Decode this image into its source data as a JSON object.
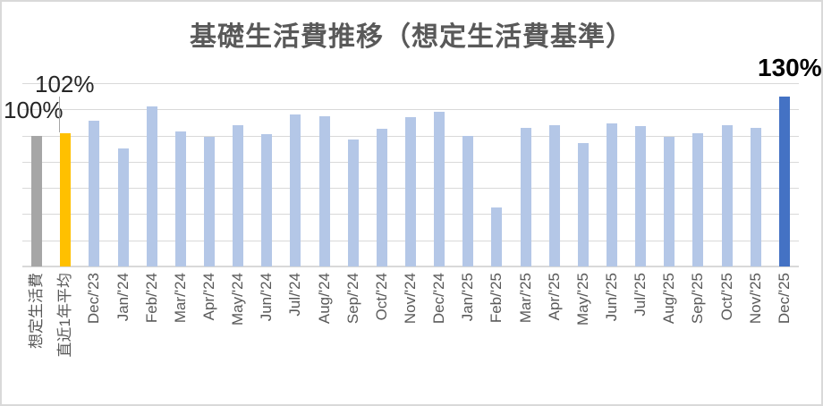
{
  "chart_data": {
    "type": "bar",
    "title": "基礎生活費推移（想定生活費基準）",
    "categories": [
      "想定生活費",
      "直近1年平均",
      "Dec/'23",
      "Jan/'24",
      "Feb/'24",
      "Mar/'24",
      "Apr/'24",
      "May/'24",
      "Jun/'24",
      "Jul/'24",
      "Aug/'24",
      "Sep/'24",
      "Oct/'24",
      "Nov/'24",
      "Dec/'24",
      "Jan/'25",
      "Feb/'25",
      "Mar/'25",
      "Apr/'25",
      "May/'25",
      "Jun/'25",
      "Jul/'25",
      "Aug/'25",
      "Sep/'25",
      "Oct/'25",
      "Nov/'25",
      "Dec/'25"
    ],
    "values": [
      100,
      102,
      111,
      90,
      122,
      103,
      99,
      108,
      101,
      116,
      115,
      97,
      105,
      114,
      118,
      100,
      45,
      106,
      108,
      94,
      109,
      107,
      99,
      102,
      108,
      106,
      130
    ],
    "unit": "%",
    "ylim": [
      0,
      140
    ],
    "gridline_step": 20,
    "grid": true,
    "legend": false,
    "y_tick_labels_visible": false,
    "x_labels_rotation_degrees": 90,
    "data_labels": [
      {
        "category": "想定生活費",
        "text": "100%"
      },
      {
        "category": "直近1年平均",
        "text": "102%",
        "leader_line": true
      },
      {
        "category": "Dec/'25",
        "text": "130%",
        "bold": true
      }
    ],
    "colors": {
      "default_bar": "#b4c7e7",
      "reference_bar": "#a6a6a6",
      "average_bar": "#ffc000",
      "highlight_bar": "#4472c4",
      "gridline": "#d9d9d9",
      "title_text": "#595959",
      "axis_text": "#595959",
      "data_label_text": "#262626",
      "highlight_label_text": "#000000"
    },
    "bar_color_overrides": {
      "0": "#a6a6a6",
      "1": "#ffc000",
      "26": "#4472c4"
    }
  }
}
